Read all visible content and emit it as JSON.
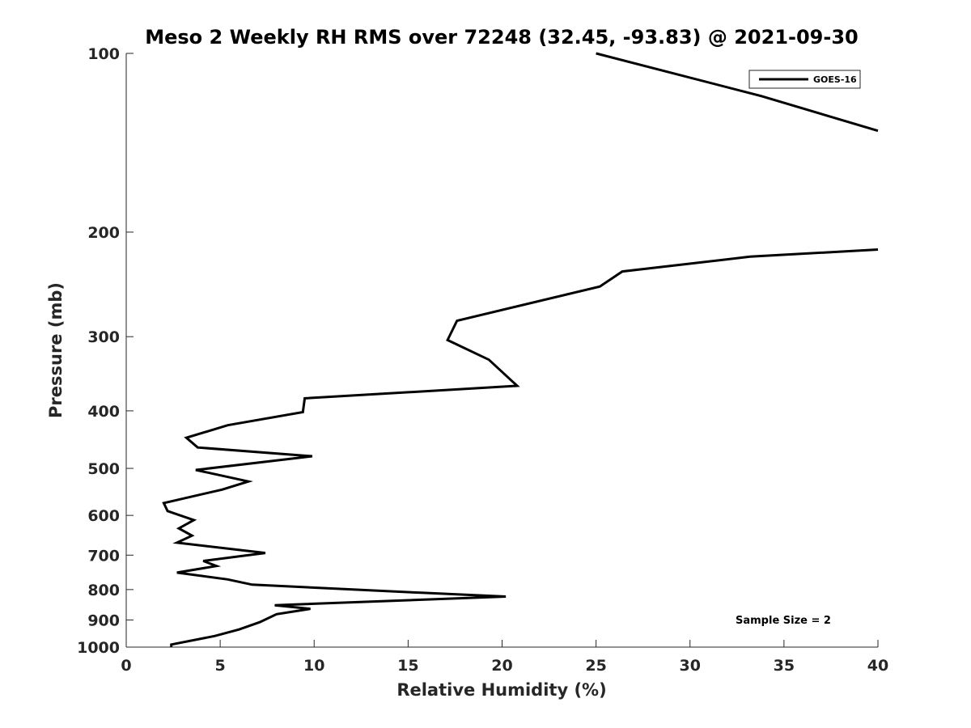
{
  "chart_data": {
    "type": "line",
    "title": "Meso 2 Weekly RH RMS over 72248 (32.45, -93.83) @ 2021-09-30",
    "xlabel": "Relative Humidity (%)",
    "ylabel": "Pressure (mb)",
    "xlim": [
      0,
      40
    ],
    "ylim": [
      100,
      1000
    ],
    "y_scale": "log",
    "y_direction": "reversed",
    "grid": false,
    "legend_position": "top-right",
    "x_ticks": [
      0,
      5,
      10,
      15,
      20,
      25,
      30,
      35,
      40
    ],
    "x_tick_labels": [
      "0",
      "5",
      "10",
      "15",
      "20",
      "25",
      "30",
      "35",
      "40"
    ],
    "y_ticks": [
      100,
      200,
      300,
      400,
      500,
      600,
      700,
      800,
      900,
      1000
    ],
    "y_tick_labels": [
      "100",
      "200",
      "300",
      "400",
      "500",
      "600",
      "700",
      "800",
      "900",
      "1000"
    ],
    "series": [
      {
        "name": "GOES-16",
        "color": "#000000",
        "segments": [
          {
            "x": [
              25.0,
              33.8,
              40.0
            ],
            "y": [
              100,
              118,
              135
            ]
          },
          {
            "x": [
              40.0,
              33.2,
              26.4,
              25.2,
              17.6,
              17.1,
              19.3,
              20.8,
              9.5,
              9.4,
              5.4,
              3.2,
              3.8,
              9.9,
              3.7,
              6.5,
              5.1,
              2.0,
              2.2,
              3.6,
              2.8,
              3.5,
              2.7,
              7.4,
              4.1,
              4.8,
              2.7,
              5.4,
              6.7,
              15.7,
              20.2,
              7.9,
              9.8,
              8.0,
              7.1,
              6.0,
              4.7,
              2.4,
              2.4
            ],
            "y": [
              214,
              220,
              233,
              247,
              282,
              304,
              328,
              363,
              381,
              402,
              423,
              444,
              461,
              477,
              503,
              526,
              543,
              572,
              590,
              611,
              631,
              649,
              667,
              694,
              716,
              730,
              749,
              769,
              785,
              810,
              822,
              850,
              862,
              880,
              908,
              934,
              958,
              990,
              1000
            ]
          }
        ]
      }
    ],
    "annotations": [
      {
        "text": "Sample Size = 2"
      }
    ]
  }
}
